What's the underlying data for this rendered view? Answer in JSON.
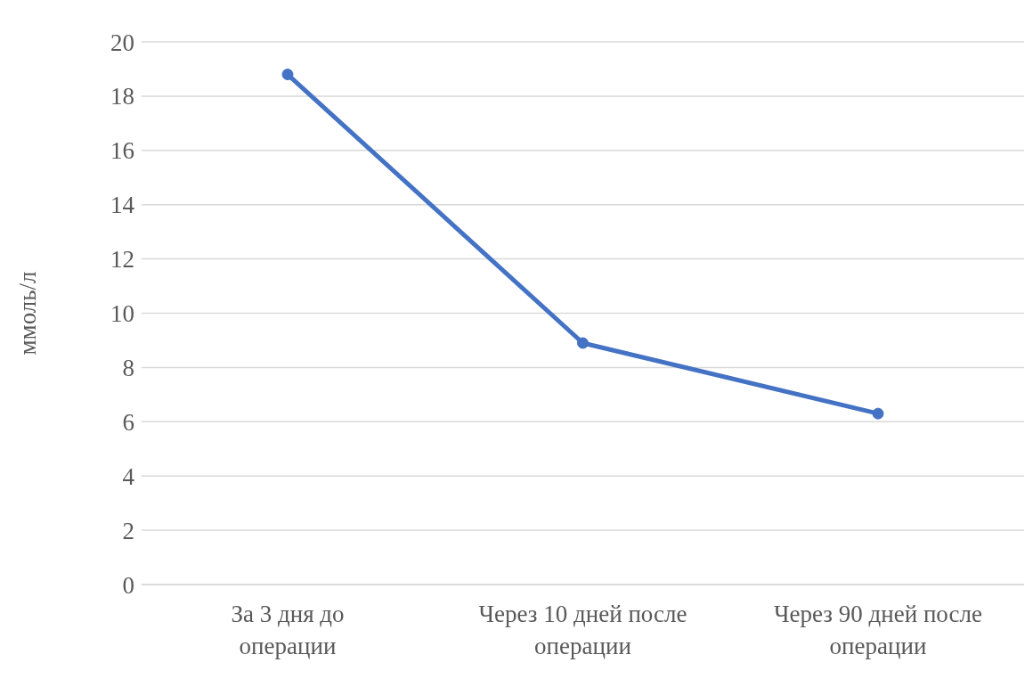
{
  "chart_data": {
    "type": "line",
    "ylabel": "ммоль/л",
    "categories": [
      "За 3 дня до операции",
      "Через 10 дней после операции",
      "Через 90 дней после операции"
    ],
    "series": [
      {
        "color": "#4472c4",
        "values": [
          18.8,
          8.9,
          6.3
        ]
      }
    ],
    "ylim": [
      0,
      20
    ],
    "yticks": [
      0,
      2,
      4,
      6,
      8,
      10,
      12,
      14,
      16,
      18,
      20
    ],
    "grid": "y",
    "marker": "circle",
    "line_style": "solid"
  }
}
